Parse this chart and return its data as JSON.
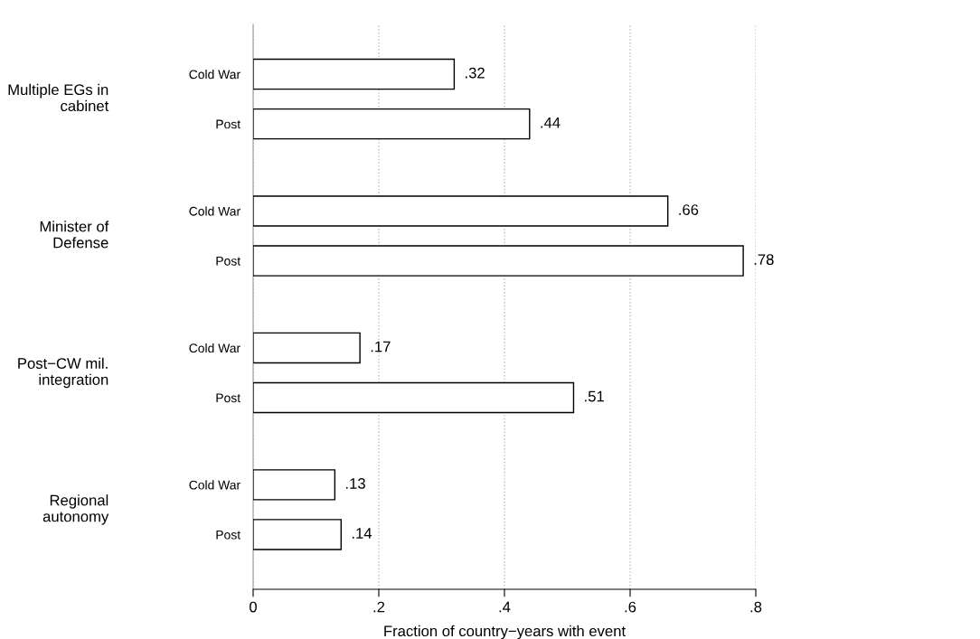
{
  "chart_data": {
    "type": "bar",
    "orientation": "horizontal",
    "xlabel": "Fraction of country−years with event",
    "categories": [
      "Cold War",
      "Post",
      "Cold War",
      "Post",
      "Cold War",
      "Post",
      "Cold War",
      "Post"
    ],
    "values": [
      0.32,
      0.44,
      0.66,
      0.78,
      0.17,
      0.51,
      0.13,
      0.14
    ],
    "value_labels": [
      ".32",
      ".44",
      ".66",
      ".78",
      ".17",
      ".51",
      ".13",
      ".14"
    ],
    "color": "#ffffff",
    "annotations": [
      "Multiple EGs in\ncabinet",
      "Minister of\nDefense",
      "Post−CW mil.\nintegration",
      "Regional\nautonomy"
    ],
    "xlim": [
      0,
      0.8
    ],
    "xticks": [
      0,
      {
        "value": 0.2,
        "label": ".2"
      },
      {
        "value": 0.4,
        "label": ".4"
      },
      {
        "value": 0.6,
        "label": ".6"
      },
      {
        "value": 0.8,
        "label": ".8"
      }
    ],
    "grid": "x"
  }
}
